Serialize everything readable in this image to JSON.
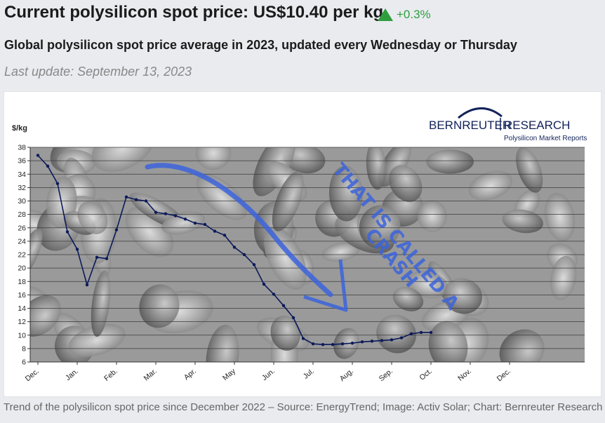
{
  "header": {
    "title": "Current polysilicon spot price: US$10.40 per kg",
    "change": "+0.3%",
    "change_color": "#2f9e3f",
    "subtitle": "Global polysilicon spot price average in 2023, updated every Wednesday or Thursday",
    "last_update": "Last update: September 13, 2023"
  },
  "caption": "Trend of the polysilicon spot price since December 2022 – Source: EnergyTrend; Image: Activ Solar; Chart: Bernreuter Research",
  "logo": {
    "name_left": "BERNREUTER",
    "name_right": "RESEARCH",
    "tagline": "Polysilicon Market Reports"
  },
  "annotation": {
    "line1": "THAT IS CALLED A",
    "line2": "CRASH",
    "arrow_color": "#3c64dc"
  },
  "chart_data": {
    "type": "line",
    "ylabel": "$/kg",
    "ylim": [
      6,
      38
    ],
    "yticks": [
      6,
      8,
      10,
      12,
      14,
      16,
      18,
      20,
      22,
      24,
      26,
      28,
      30,
      32,
      34,
      36,
      38
    ],
    "grid": true,
    "months": [
      "Dec.",
      "Jan.",
      "Feb.",
      "Mar.",
      "Apr.",
      "May",
      "Jun.",
      "Jul.",
      "Aug.",
      "Sep.",
      "Oct.",
      "Nov.",
      "Dec."
    ],
    "series": [
      {
        "color": "#0b1a5a",
        "points": [
          [
            0.0,
            36.8
          ],
          [
            0.25,
            35.2
          ],
          [
            0.5,
            32.6
          ],
          [
            0.75,
            25.4
          ],
          [
            1.0,
            22.8
          ],
          [
            1.25,
            17.5
          ],
          [
            1.5,
            21.6
          ],
          [
            1.75,
            21.4
          ],
          [
            2.0,
            25.7
          ],
          [
            2.25,
            30.6
          ],
          [
            2.5,
            30.2
          ],
          [
            2.75,
            30.0
          ],
          [
            3.0,
            28.3
          ],
          [
            3.25,
            28.1
          ],
          [
            3.5,
            27.8
          ],
          [
            3.75,
            27.3
          ],
          [
            4.0,
            26.7
          ],
          [
            4.25,
            26.5
          ],
          [
            4.5,
            25.5
          ],
          [
            4.75,
            24.9
          ],
          [
            5.0,
            23.1
          ],
          [
            5.25,
            22.0
          ],
          [
            5.5,
            20.5
          ],
          [
            5.75,
            17.6
          ],
          [
            6.0,
            16.1
          ],
          [
            6.25,
            14.4
          ],
          [
            6.5,
            12.6
          ],
          [
            6.75,
            9.5
          ],
          [
            7.0,
            8.7
          ],
          [
            7.25,
            8.6
          ],
          [
            7.5,
            8.6
          ],
          [
            7.75,
            8.7
          ],
          [
            8.0,
            8.8
          ],
          [
            8.25,
            9.0
          ],
          [
            8.5,
            9.1
          ],
          [
            8.75,
            9.2
          ],
          [
            9.0,
            9.3
          ],
          [
            9.25,
            9.6
          ],
          [
            9.5,
            10.2
          ],
          [
            9.75,
            10.4
          ],
          [
            10.0,
            10.4
          ]
        ]
      }
    ]
  }
}
